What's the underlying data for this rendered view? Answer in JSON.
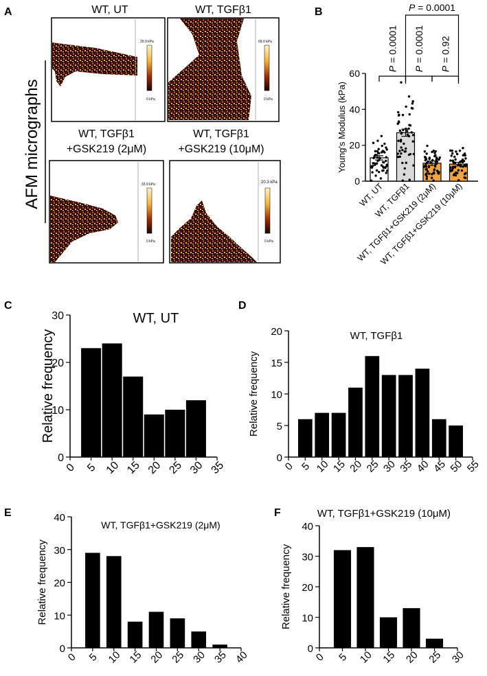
{
  "panel_labels": {
    "A": "A",
    "B": "B",
    "C": "C",
    "D": "D",
    "E": "E",
    "F": "F"
  },
  "afm": {
    "side_label": "AFM micrographs",
    "panels": [
      {
        "title": "WT, UT",
        "title2": "",
        "scale_max": "29.9 kPa",
        "scale_min": "0 kPa"
      },
      {
        "title": "WT, TGFβ1",
        "title2": "",
        "scale_max": "69.0 kPa",
        "scale_min": "0 kPa"
      },
      {
        "title": "WT, TGFβ1",
        "title2": "+GSK219 (2μM)",
        "scale_max": "33.9 kPa",
        "scale_min": "0 kPa"
      },
      {
        "title": "WT, TGFβ1",
        "title2": "+GSK219 (10μM)",
        "scale_max": "20.3 kPa",
        "scale_min": "0 kPa"
      }
    ]
  },
  "colors": {
    "bar_gray": "#d9d9d9",
    "bar_orange": "#f2a33a",
    "hist": "#000000"
  },
  "chart_data": [
    {
      "id": "B",
      "type": "bar",
      "ylabel": "Young's Modulus (kPa)",
      "ylim": [
        0,
        60
      ],
      "yticks": [
        0,
        20,
        40,
        60
      ],
      "categories": [
        "WT, UT",
        "WT, TGFβ1",
        "WT, TGFβ1+GSK219 (2μM)",
        "WT, TGFβ1+GSK219 (10μM)"
      ],
      "values": [
        13,
        27,
        10,
        9.5
      ],
      "errors": [
        1.2,
        2,
        1.2,
        1
      ],
      "bar_colors": [
        "#ffffff",
        "#d9d9d9",
        "#f2a33a",
        "#f2a33a"
      ],
      "annotations": [
        {
          "from": 0,
          "to": 1,
          "label": "= 0.0001"
        },
        {
          "from": 1,
          "to": 2,
          "label": "= 0.0001"
        },
        {
          "from": 2,
          "to": 3,
          "label": "= 0.92"
        },
        {
          "from": 1,
          "to": 3,
          "label": "= 0.0001"
        }
      ],
      "p_symbol": "P"
    },
    {
      "id": "C",
      "type": "bar",
      "title": "WT, UT",
      "ylabel": "Relative frequency",
      "x": [
        5,
        10,
        15,
        20,
        25,
        30
      ],
      "values": [
        23,
        24,
        17,
        9,
        10,
        12
      ],
      "xlim": [
        0,
        35
      ],
      "xticks": [
        0,
        5,
        10,
        15,
        20,
        25,
        30,
        35
      ],
      "ylim": [
        0,
        30
      ],
      "yticks": [
        0,
        10,
        20,
        30
      ]
    },
    {
      "id": "D",
      "type": "bar",
      "title": "WT, TGFβ1",
      "ylabel": "Relative frequency",
      "x": [
        5,
        10,
        15,
        20,
        25,
        30,
        35,
        40,
        45,
        50
      ],
      "values": [
        6,
        7,
        7,
        11,
        16,
        13,
        13,
        14,
        6,
        5
      ],
      "xlim": [
        0,
        55
      ],
      "xticks": [
        0,
        5,
        10,
        15,
        20,
        25,
        30,
        35,
        40,
        45,
        50,
        55
      ],
      "ylim": [
        0,
        20
      ],
      "yticks": [
        0,
        5,
        10,
        15,
        20
      ]
    },
    {
      "id": "E",
      "type": "bar",
      "title": "WT, TGFβ1+GSK219 (2μM)",
      "ylabel": "Relative frequency",
      "x": [
        5,
        10,
        15,
        20,
        25,
        30,
        35
      ],
      "values": [
        29,
        28,
        8,
        11,
        9,
        5,
        1
      ],
      "xlim": [
        0,
        40
      ],
      "xticks": [
        0,
        5,
        10,
        15,
        20,
        25,
        30,
        35,
        40
      ],
      "ylim": [
        0,
        40
      ],
      "yticks": [
        0,
        10,
        20,
        30,
        40
      ]
    },
    {
      "id": "F",
      "type": "bar",
      "title": "WT, TGFβ1+GSK219 (10μM)",
      "ylabel": "Relative frequency",
      "x": [
        5,
        10,
        15,
        20,
        25
      ],
      "values": [
        32,
        33,
        10,
        13,
        3
      ],
      "xlim": [
        0,
        30
      ],
      "xticks": [
        0,
        5,
        10,
        15,
        20,
        25,
        30
      ],
      "ylim": [
        0,
        40
      ],
      "yticks": [
        0,
        10,
        20,
        30,
        40
      ]
    }
  ]
}
